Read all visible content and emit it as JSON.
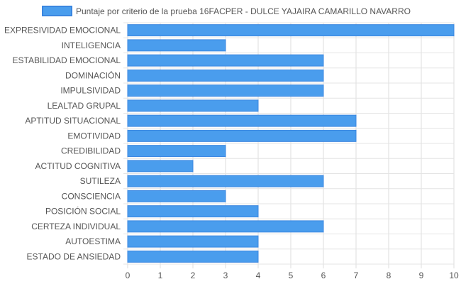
{
  "chart_data": {
    "type": "bar",
    "orientation": "horizontal",
    "categories": [
      "EXPRESIVIDAD EMOCIONAL",
      "INTELIGENCIA",
      "ESTABILIDAD EMOCIONAL",
      "DOMINACIÓN",
      "IMPULSIVIDAD",
      "LEALTAD GRUPAL",
      "APTITUD SITUACIONAL",
      "EMOTIVIDAD",
      "CREDIBILIDAD",
      "ACTITUD COGNITIVA",
      "SUTILEZA",
      "CONSCIENCIA",
      "POSICIÓN SOCIAL",
      "CERTEZA INDIVIDUAL",
      "AUTOESTIMA",
      "ESTADO DE ANSIEDAD"
    ],
    "series": [
      {
        "name": "Puntaje por criterio de la prueba 16FACPER - DULCE YAJAIRA CAMARILLO NAVARRO",
        "values": [
          10,
          3,
          6,
          6,
          6,
          4,
          7,
          7,
          3,
          2,
          6,
          3,
          4,
          6,
          4,
          4
        ],
        "color": "#4a9ded",
        "border_color": "#3a86e0"
      }
    ],
    "xlim": [
      0,
      10
    ],
    "x_ticks": [
      "0",
      "1",
      "2",
      "3",
      "4",
      "5",
      "6",
      "7",
      "8",
      "9",
      "10"
    ],
    "grid": true,
    "legend_position": "top"
  }
}
